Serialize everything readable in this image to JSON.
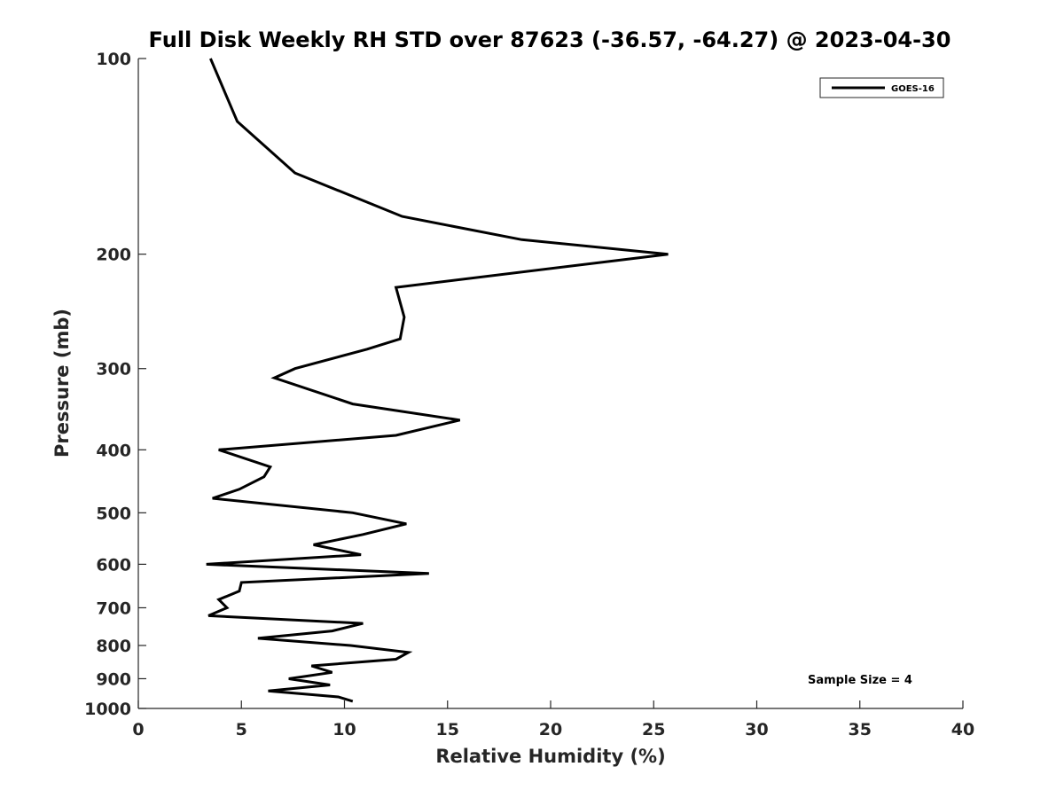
{
  "chart_data": {
    "type": "line",
    "title": "Full Disk Weekly RH STD over 87623 (-36.57, -64.27) @ 2023-04-30",
    "xlabel": "Relative Humidity (%)",
    "ylabel": "Pressure (mb)",
    "xlim": [
      0,
      40
    ],
    "ylim": [
      100,
      1000
    ],
    "yscale": "log",
    "yreversed": true,
    "grid": false,
    "xticks": [
      0,
      5,
      10,
      15,
      20,
      25,
      30,
      35,
      40
    ],
    "xtick_labels": [
      "0",
      "5",
      "10",
      "15",
      "20",
      "25",
      "30",
      "35",
      "40"
    ],
    "yticks": [
      100,
      200,
      300,
      400,
      500,
      600,
      700,
      800,
      900,
      1000
    ],
    "ytick_labels": [
      "100",
      "200",
      "300",
      "400",
      "500",
      "600",
      "700",
      "800",
      "900",
      "1000"
    ],
    "legend": {
      "placement": "top-right",
      "entries": [
        "GOES-16"
      ]
    },
    "annotation": "Sample Size = 4",
    "series": [
      {
        "name": "GOES-16",
        "color": "#000000",
        "points": [
          [
            3.5,
            100
          ],
          [
            4.8,
            125
          ],
          [
            7.6,
            150
          ],
          [
            12.8,
            175
          ],
          [
            18.6,
            190
          ],
          [
            25.7,
            200
          ],
          [
            12.5,
            225
          ],
          [
            12.9,
            250
          ],
          [
            12.7,
            270
          ],
          [
            11.1,
            280
          ],
          [
            7.6,
            300
          ],
          [
            6.6,
            310
          ],
          [
            10.4,
            340
          ],
          [
            15.6,
            360
          ],
          [
            12.5,
            380
          ],
          [
            3.9,
            400
          ],
          [
            6.4,
            425
          ],
          [
            6.1,
            440
          ],
          [
            4.9,
            460
          ],
          [
            3.6,
            475
          ],
          [
            10.4,
            500
          ],
          [
            13.0,
            520
          ],
          [
            10.9,
            540
          ],
          [
            8.5,
            560
          ],
          [
            10.8,
            580
          ],
          [
            3.3,
            600
          ],
          [
            14.1,
            620
          ],
          [
            5.0,
            640
          ],
          [
            4.9,
            660
          ],
          [
            3.9,
            680
          ],
          [
            4.3,
            700
          ],
          [
            3.4,
            720
          ],
          [
            10.9,
            740
          ],
          [
            9.4,
            760
          ],
          [
            5.8,
            780
          ],
          [
            10.3,
            800
          ],
          [
            13.1,
            820
          ],
          [
            12.5,
            840
          ],
          [
            8.4,
            860
          ],
          [
            9.4,
            880
          ],
          [
            7.3,
            900
          ],
          [
            9.3,
            920
          ],
          [
            6.3,
            940
          ],
          [
            9.7,
            960
          ],
          [
            10.4,
            975
          ]
        ]
      }
    ]
  }
}
